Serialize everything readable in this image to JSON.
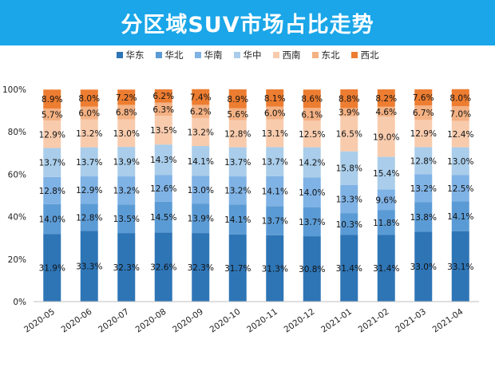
{
  "title": "分区域SUV市场占比走势",
  "chart_data": {
    "type": "bar",
    "stacked": true,
    "categories": [
      "2020-05",
      "2020-06",
      "2020-07",
      "2020-08",
      "2020-09",
      "2020-10",
      "2020-11",
      "2020-12",
      "2021-01",
      "2021-02",
      "2021-03",
      "2021-04"
    ],
    "ylim": [
      0,
      100
    ],
    "yticks": [
      "0%",
      "20%",
      "40%",
      "60%",
      "80%",
      "100%"
    ],
    "ytick_values": [
      0,
      20,
      40,
      60,
      80,
      100
    ],
    "legend_position": "top",
    "series": [
      {
        "name": "华东",
        "color": "#2e75b6",
        "values": [
          31.9,
          33.3,
          32.3,
          32.6,
          32.3,
          31.7,
          31.3,
          30.8,
          31.4,
          31.4,
          33.0,
          33.1
        ]
      },
      {
        "name": "华北",
        "color": "#5b9bd5",
        "values": [
          14.0,
          12.8,
          13.5,
          14.5,
          13.9,
          14.1,
          13.7,
          13.7,
          10.3,
          11.8,
          13.8,
          14.1
        ]
      },
      {
        "name": "华南",
        "color": "#7fb2e5",
        "values": [
          12.8,
          12.9,
          13.2,
          12.6,
          13.0,
          13.2,
          14.1,
          14.0,
          13.3,
          9.6,
          13.2,
          12.5
        ]
      },
      {
        "name": "华中",
        "color": "#a9cdea",
        "values": [
          13.7,
          13.7,
          13.9,
          14.3,
          14.1,
          13.7,
          13.7,
          14.2,
          15.8,
          15.4,
          12.8,
          13.0
        ]
      },
      {
        "name": "西南",
        "color": "#f8cbad",
        "values": [
          12.9,
          13.2,
          13.0,
          13.5,
          13.2,
          12.8,
          13.1,
          12.5,
          16.5,
          19.0,
          12.9,
          12.4
        ]
      },
      {
        "name": "东北",
        "color": "#f4b183",
        "values": [
          5.7,
          6.0,
          6.8,
          6.3,
          6.2,
          5.6,
          6.0,
          6.1,
          3.9,
          4.6,
          6.7,
          7.0
        ]
      },
      {
        "name": "西北",
        "color": "#ed7d31",
        "values": [
          8.9,
          8.0,
          7.2,
          6.2,
          7.4,
          8.9,
          8.1,
          8.6,
          8.8,
          8.2,
          7.6,
          8.0
        ]
      }
    ]
  }
}
